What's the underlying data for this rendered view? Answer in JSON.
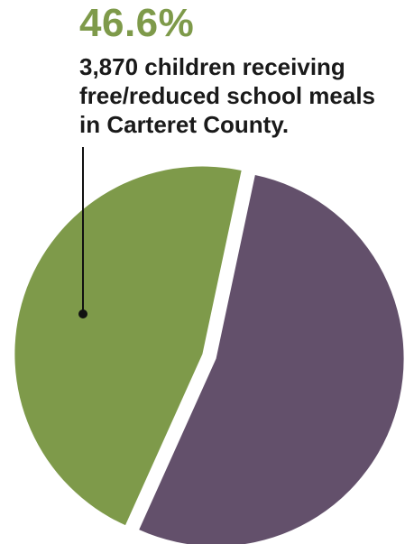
{
  "headline": {
    "percent": "46.6%",
    "lines": [
      "3,870 children receiving",
      "free/reduced school meals",
      "in Carteret County."
    ]
  },
  "chart_data": {
    "type": "pie",
    "slices": [
      {
        "label": "children receiving free/reduced school meals",
        "value": 46.6,
        "color": "#7e9a4a"
      },
      {
        "label": "",
        "value": 53.4,
        "color": "#63506b"
      }
    ],
    "annotation": "3,870 children receiving free/reduced school meals in Carteret County."
  }
}
